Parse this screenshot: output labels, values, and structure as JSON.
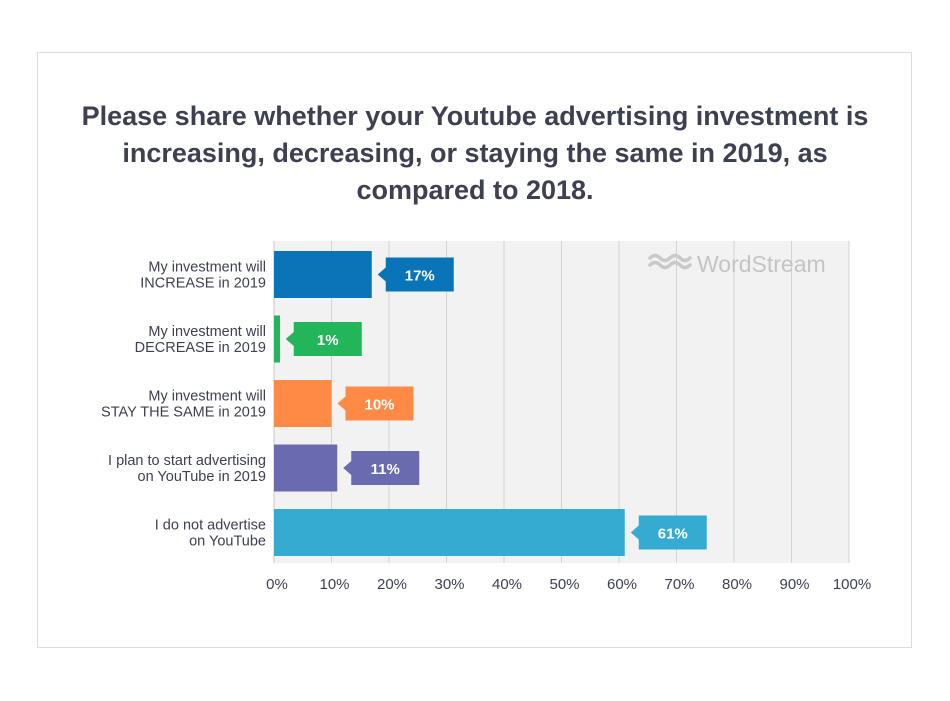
{
  "chart_data": {
    "type": "bar",
    "orientation": "horizontal",
    "title": "Please share whether your Youtube advertising investment is increasing, decreasing, or staying the same in 2019, as compared to 2018.",
    "categories": [
      [
        "My investment will",
        "INCREASE in 2019"
      ],
      [
        "My investment will",
        "DECREASE in 2019"
      ],
      [
        "My investment will",
        "STAY THE SAME in 2019"
      ],
      [
        "I plan to start advertising",
        "on YouTube in 2019"
      ],
      [
        "I do not advertise",
        "on YouTube"
      ]
    ],
    "values": [
      17,
      1,
      10,
      11,
      61
    ],
    "value_labels": [
      "17%",
      "1%",
      "10%",
      "11%",
      "61%"
    ],
    "colors": [
      "#0a74b9",
      "#23b55a",
      "#ff8a45",
      "#6a6ab0",
      "#35abd1"
    ],
    "xlim": [
      0,
      100
    ],
    "x_ticks": [
      "0%",
      "10%",
      "20%",
      "30%",
      "40%",
      "50%",
      "60%",
      "70%",
      "80%",
      "90%",
      "100%"
    ],
    "grid": true,
    "background": "#f2f2f2",
    "watermark": "WordStream"
  }
}
